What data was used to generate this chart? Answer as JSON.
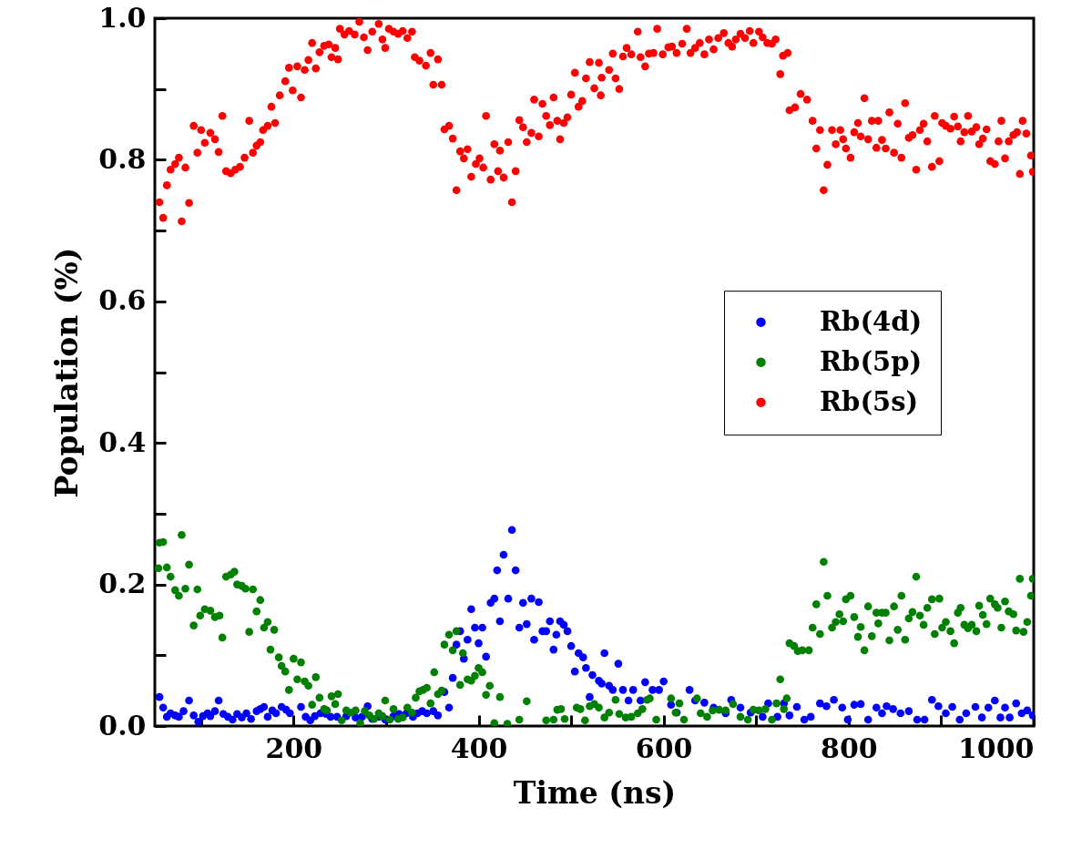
{
  "chart_data": {
    "type": "scatter",
    "xlabel": "Time (ns)",
    "ylabel": "Population (%)",
    "xlim": [
      50,
      1000
    ],
    "ylim": [
      0,
      1
    ],
    "xticks": [
      {
        "value": 100,
        "label": null
      },
      200,
      {
        "value": 300,
        "label": null
      },
      400,
      {
        "value": 500,
        "label": null
      },
      600,
      {
        "value": 700,
        "label": null
      },
      800,
      {
        "value": 900,
        "label": null
      },
      1000
    ],
    "yticks": [
      {
        "value": 0,
        "label": "0.0"
      },
      {
        "value": 0.1,
        "label": null
      },
      0.2,
      {
        "value": 0.3,
        "label": null
      },
      0.4,
      {
        "value": 0.5,
        "label": null
      },
      0.6,
      {
        "value": 0.7,
        "label": null
      },
      0.8,
      {
        "value": 0.9,
        "label": null
      },
      {
        "value": 1,
        "label": "1.0"
      }
    ],
    "grid": false,
    "legend": "right",
    "marker": "circle",
    "series": [
      {
        "name": "Rb(4d)",
        "color": "#0000ff",
        "x": [
          55,
          59,
          63,
          67,
          72,
          76,
          81,
          87,
          92,
          97,
          102,
          107,
          110,
          115,
          119,
          124,
          129,
          134,
          139,
          144,
          149,
          154,
          160,
          164,
          168,
          172,
          177,
          181,
          187,
          192,
          196,
          208,
          213,
          218,
          223,
          229,
          235,
          240,
          247,
          257,
          267,
          274,
          280,
          285,
          292,
          299,
          308,
          314,
          322,
          329,
          334,
          339,
          344,
          351,
          356,
          363,
          368,
          372,
          376,
          380,
          384,
          388,
          392,
          396,
          400,
          404,
          408,
          413,
          417,
          420,
          423,
          427,
          432,
          436,
          440,
          444,
          448,
          452,
          457,
          460,
          465,
          469,
          473,
          477,
          481,
          484,
          488,
          492,
          496,
          500,
          504,
          508,
          513,
          516,
          520,
          523,
          530,
          533,
          536,
          541,
          545,
          551,
          556,
          562,
          567,
          575,
          580,
          588,
          595,
          600,
          608,
          614,
          628,
          634,
          644,
          654,
          667,
          673,
          683,
          694,
          707,
          713,
          723,
          730,
          736,
          744,
          752,
          759,
          769,
          776,
          784,
          793,
          799,
          806,
          813,
          821,
          830,
          836,
          841,
          848,
          856,
          865,
          874,
          882,
          890,
          897,
          905,
          912,
          920,
          927,
          937,
          944,
          951,
          958,
          964,
          969,
          974,
          981,
          987,
          993,
          999
        ],
        "values": [
          0.041,
          0.026,
          0.013,
          0.018,
          0.015,
          0.013,
          0.021,
          0.036,
          0.015,
          0.006,
          0.014,
          0.018,
          0.014,
          0.021,
          0.036,
          0.017,
          0.013,
          0.009,
          0.017,
          0.012,
          0.018,
          0.01,
          0.021,
          0.024,
          0.027,
          0.013,
          0.022,
          0.018,
          0.027,
          0.023,
          0.018,
          0.027,
          0.013,
          0.008,
          0.014,
          0.018,
          0.017,
          0.013,
          0.013,
          0.014,
          0.012,
          0.013,
          0.028,
          0.01,
          0.013,
          0.009,
          0.014,
          0.017,
          0.018,
          0.013,
          0.018,
          0.021,
          0.018,
          0.021,
          0.015,
          0.048,
          0.026,
          0.068,
          0.115,
          0.134,
          0.095,
          0.122,
          0.165,
          0.139,
          0.117,
          0.139,
          0.098,
          0.174,
          0.18,
          0.22,
          0.148,
          0.242,
          0.18,
          0.277,
          0.22,
          0.139,
          0.174,
          0.144,
          0.18,
          0.122,
          0.175,
          0.134,
          0.134,
          0.148,
          0.108,
          0.129,
          0.148,
          0.143,
          0.134,
          0.113,
          0.077,
          0.103,
          0.097,
          0.082,
          0.041,
          0.072,
          0.064,
          0.06,
          0.103,
          0.057,
          0.051,
          0.088,
          0.051,
          0.036,
          0.051,
          0.036,
          0.062,
          0.051,
          0.051,
          0.063,
          0.03,
          0.019,
          0.051,
          0.036,
          0.033,
          0.026,
          0.018,
          0.037,
          0.026,
          0.019,
          0.013,
          0.032,
          0.013,
          0.032,
          0.015,
          0.027,
          0.009,
          0.013,
          0.032,
          0.028,
          0.037,
          0.026,
          0.009,
          0.03,
          0.031,
          0.009,
          0.026,
          0.018,
          0.028,
          0.024,
          0.018,
          0.021,
          0.009,
          0.009,
          0.037,
          0.028,
          0.018,
          0.027,
          0.009,
          0.018,
          0.027,
          0.012,
          0.026,
          0.036,
          0.012,
          0.026,
          0.012,
          0.032,
          0.018,
          0.022,
          0.015
        ]
      },
      {
        "name": "Rb(5p)",
        "color": "#008000",
        "x": [
          55,
          59,
          54,
          63,
          67,
          72,
          76,
          79,
          83,
          87,
          92,
          96,
          99,
          104,
          110,
          115,
          120,
          123,
          127,
          132,
          136,
          139,
          144,
          148,
          152,
          156,
          160,
          164,
          168,
          172,
          179,
          175,
          184,
          187,
          191,
          195,
          200,
          204,
          208,
          212,
          216,
          220,
          224,
          228,
          233,
          236,
          241,
          245,
          248,
          252,
          257,
          262,
          267,
          272,
          277,
          282,
          287,
          292,
          296,
          299,
          304,
          308,
          313,
          318,
          323,
          328,
          332,
          336,
          340,
          344,
          348,
          352,
          356,
          360,
          363,
          368,
          372,
          376,
          380,
          383,
          388,
          392,
          396,
          400,
          404,
          408,
          412,
          417,
          423,
          431,
          444,
          452,
          473,
          481,
          485,
          489,
          493,
          506,
          510,
          515,
          520,
          525,
          530,
          536,
          541,
          548,
          552,
          559,
          565,
          572,
          577,
          582,
          585,
          592,
          608,
          613,
          617,
          622,
          636,
          640,
          647,
          653,
          660,
          667,
          675,
          683,
          691,
          697,
          703,
          710,
          717,
          722,
          726,
          730,
          733,
          736,
          741,
          745,
          750,
          757,
          761,
          765,
          769,
          773,
          777,
          782,
          786,
          790,
          794,
          797,
          802,
          806,
          810,
          813,
          817,
          821,
          825,
          830,
          832,
          836,
          840,
          844,
          849,
          853,
          857,
          861,
          865,
          869,
          873,
          877,
          881,
          885,
          890,
          893,
          898,
          901,
          905,
          910,
          914,
          918,
          921,
          925,
          929,
          933,
          938,
          941,
          945,
          949,
          953,
          958,
          961,
          965,
          969,
          973,
          978,
          981,
          985,
          989,
          993,
          997,
          999
        ],
        "values": [
          0.259,
          0.26,
          0.223,
          0.224,
          0.211,
          0.192,
          0.184,
          0.27,
          0.194,
          0.228,
          0.142,
          0.193,
          0.156,
          0.165,
          0.163,
          0.154,
          0.156,
          0.125,
          0.211,
          0.214,
          0.218,
          0.2,
          0.198,
          0.194,
          0.133,
          0.193,
          0.162,
          0.178,
          0.139,
          0.147,
          0.136,
          0.108,
          0.097,
          0.085,
          0.077,
          0.051,
          0.095,
          0.066,
          0.09,
          0.063,
          0.057,
          0.03,
          0.069,
          0.04,
          0.024,
          0.022,
          0.042,
          0.031,
          0.045,
          0.008,
          0.022,
          0.019,
          0.022,
          0.004,
          0.021,
          0.015,
          0.01,
          0.018,
          0.014,
          0.036,
          0.009,
          0.024,
          0.01,
          0.012,
          0.026,
          0.019,
          0.04,
          0.049,
          0.051,
          0.054,
          0.032,
          0.076,
          0.045,
          0.05,
          0.115,
          0.129,
          0.107,
          0.134,
          0.058,
          0.103,
          0.066,
          0.064,
          0.071,
          0.082,
          0.076,
          0.044,
          0.057,
          0.004,
          0.041,
          0.003,
          0.009,
          0.035,
          0.008,
          0.009,
          0.023,
          0.024,
          0.01,
          0.026,
          0.024,
          0.008,
          0.028,
          0.031,
          0.026,
          0.012,
          0.019,
          0.037,
          0.017,
          0.012,
          0.013,
          0.018,
          0.024,
          0.037,
          0.039,
          0.009,
          0.039,
          0.019,
          0.032,
          0.009,
          0.039,
          0.018,
          0.013,
          0.022,
          0.023,
          0.022,
          0.031,
          0.013,
          0.009,
          0.023,
          0.022,
          0.024,
          0.009,
          0.032,
          0.066,
          0.024,
          0.039,
          0.117,
          0.113,
          0.106,
          0.107,
          0.107,
          0.139,
          0.172,
          0.13,
          0.232,
          0.184,
          0.139,
          0.147,
          0.158,
          0.148,
          0.179,
          0.184,
          0.154,
          0.126,
          0.14,
          0.107,
          0.169,
          0.127,
          0.16,
          0.145,
          0.16,
          0.16,
          0.121,
          0.169,
          0.136,
          0.184,
          0.122,
          0.152,
          0.161,
          0.211,
          0.156,
          0.143,
          0.167,
          0.179,
          0.13,
          0.18,
          0.139,
          0.147,
          0.134,
          0.117,
          0.16,
          0.167,
          0.143,
          0.138,
          0.143,
          0.134,
          0.17,
          0.157,
          0.144,
          0.18,
          0.172,
          0.167,
          0.139,
          0.176,
          0.162,
          0.158,
          0.135,
          0.208,
          0.133,
          0.147,
          0.184,
          0.208
        ]
      },
      {
        "name": "Rb(5s)",
        "color": "#ff0000",
        "x": [
          55,
          59,
          63,
          67,
          72,
          76,
          79,
          83,
          87,
          92,
          96,
          100,
          104,
          110,
          115,
          119,
          123,
          127,
          132,
          137,
          142,
          147,
          152,
          156,
          160,
          164,
          167,
          172,
          176,
          180,
          185,
          191,
          195,
          199,
          204,
          208,
          212,
          216,
          220,
          224,
          228,
          233,
          238,
          241,
          245,
          248,
          250,
          255,
          260,
          266,
          271,
          276,
          280,
          285,
          292,
          296,
          299,
          303,
          308,
          313,
          318,
          323,
          328,
          331,
          336,
          343,
          348,
          351,
          356,
          360,
          363,
          368,
          372,
          376,
          380,
          384,
          388,
          392,
          397,
          401,
          405,
          408,
          413,
          417,
          421,
          423,
          427,
          432,
          436,
          440,
          444,
          448,
          452,
          457,
          460,
          465,
          469,
          473,
          477,
          481,
          485,
          488,
          492,
          496,
          500,
          504,
          508,
          512,
          516,
          520,
          525,
          530,
          532,
          533,
          541,
          545,
          548,
          552,
          556,
          560,
          565,
          572,
          575,
          580,
          584,
          589,
          593,
          599,
          605,
          609,
          614,
          620,
          625,
          629,
          634,
          639,
          644,
          649,
          654,
          659,
          665,
          670,
          674,
          678,
          683,
          688,
          693,
          697,
          703,
          707,
          712,
          717,
          721,
          726,
          729,
          734,
          736,
          742,
          748,
          755,
          761,
          765,
          769,
          773,
          777,
          782,
          786,
          791,
          794,
          797,
          802,
          806,
          810,
          813,
          817,
          821,
          825,
          830,
          832,
          836,
          840,
          844,
          849,
          853,
          857,
          861,
          865,
          869,
          873,
          877,
          881,
          885,
          890,
          893,
          898,
          901,
          905,
          910,
          914,
          918,
          921,
          925,
          929,
          933,
          938,
          941,
          945,
          949,
          953,
          958,
          962,
          965,
          969,
          973,
          978,
          982,
          985,
          988,
          992,
          997,
          999
        ],
        "values": [
          0.74,
          0.718,
          0.764,
          0.786,
          0.794,
          0.803,
          0.713,
          0.789,
          0.739,
          0.848,
          0.81,
          0.842,
          0.824,
          0.838,
          0.829,
          0.811,
          0.862,
          0.784,
          0.781,
          0.786,
          0.79,
          0.803,
          0.855,
          0.81,
          0.82,
          0.825,
          0.842,
          0.848,
          0.875,
          0.852,
          0.891,
          0.911,
          0.93,
          0.898,
          0.932,
          0.888,
          0.927,
          0.941,
          0.965,
          0.929,
          0.952,
          0.961,
          0.963,
          0.945,
          0.958,
          0.942,
          0.985,
          0.977,
          0.982,
          0.977,
          0.995,
          0.973,
          0.955,
          0.981,
          0.992,
          0.97,
          0.958,
          0.985,
          0.981,
          0.978,
          0.982,
          0.972,
          0.981,
          0.945,
          0.94,
          0.933,
          0.951,
          0.906,
          0.942,
          0.906,
          0.843,
          0.848,
          0.83,
          0.757,
          0.812,
          0.802,
          0.815,
          0.776,
          0.794,
          0.802,
          0.789,
          0.862,
          0.772,
          0.822,
          0.784,
          0.813,
          0.775,
          0.825,
          0.74,
          0.784,
          0.856,
          0.846,
          0.825,
          0.838,
          0.885,
          0.833,
          0.879,
          0.862,
          0.849,
          0.888,
          0.855,
          0.829,
          0.852,
          0.86,
          0.892,
          0.923,
          0.875,
          0.883,
          0.915,
          0.938,
          0.901,
          0.937,
          0.891,
          0.916,
          0.927,
          0.95,
          0.915,
          0.9,
          0.946,
          0.958,
          0.949,
          0.981,
          0.945,
          0.932,
          0.95,
          0.951,
          0.985,
          0.949,
          0.959,
          0.96,
          0.951,
          0.964,
          0.985,
          0.951,
          0.958,
          0.965,
          0.949,
          0.97,
          0.956,
          0.972,
          0.979,
          0.965,
          0.96,
          0.97,
          0.978,
          0.972,
          0.982,
          0.965,
          0.981,
          0.973,
          0.965,
          0.964,
          0.97,
          0.921,
          0.947,
          0.951,
          0.87,
          0.874,
          0.893,
          0.885,
          0.855,
          0.816,
          0.842,
          0.757,
          0.793,
          0.842,
          0.822,
          0.842,
          0.829,
          0.816,
          0.803,
          0.839,
          0.852,
          0.833,
          0.887,
          0.829,
          0.855,
          0.817,
          0.855,
          0.828,
          0.816,
          0.867,
          0.81,
          0.851,
          0.803,
          0.88,
          0.831,
          0.835,
          0.786,
          0.842,
          0.851,
          0.826,
          0.79,
          0.862,
          0.798,
          0.852,
          0.848,
          0.844,
          0.861,
          0.847,
          0.826,
          0.839,
          0.862,
          0.84,
          0.846,
          0.822,
          0.83,
          0.843,
          0.798,
          0.794,
          0.826,
          0.855,
          0.802,
          0.826,
          0.835,
          0.839,
          0.78,
          0.855,
          0.837,
          0.806,
          0.783
        ]
      }
    ]
  }
}
